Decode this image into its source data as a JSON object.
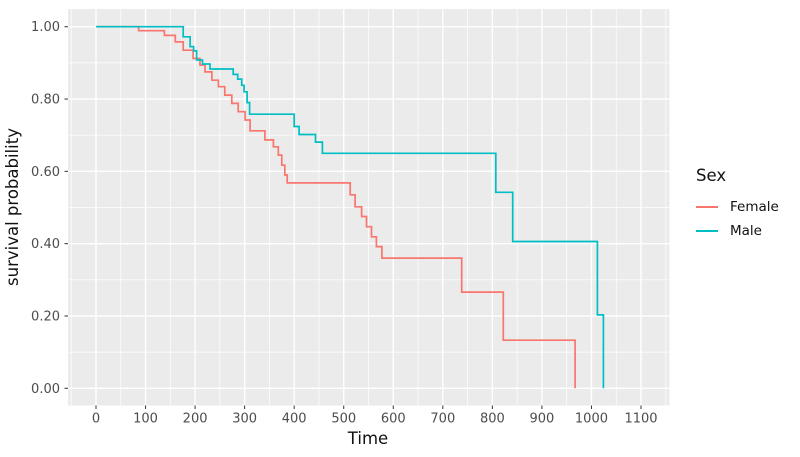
{
  "figure": {
    "background": "#ffffff",
    "panel_background": "#ebebeb",
    "grid_color": "#ffffff",
    "tick_mark_color": "#333333",
    "tick_label_color": "#4d4d4d",
    "axis_title_color": "#111111"
  },
  "chart_data": {
    "type": "line",
    "subtype": "kaplan-meier-step",
    "title": "",
    "xlabel": "Time",
    "ylabel": "survival probability",
    "grid": true,
    "legend_position": "right",
    "legend_title": "Sex",
    "xlim": [
      -56.5,
      1157.5
    ],
    "ylim": [
      -0.0476,
      1.049
    ],
    "x_ticks": {
      "values": [
        0,
        100,
        200,
        300,
        400,
        500,
        600,
        700,
        800,
        900,
        1000,
        1100
      ],
      "labels": [
        "0",
        "100",
        "200",
        "300",
        "400",
        "500",
        "600",
        "700",
        "800",
        "900",
        "1000",
        "1100"
      ]
    },
    "y_ticks": {
      "values": [
        0.0,
        0.2,
        0.4,
        0.6,
        0.8,
        1.0
      ],
      "labels": [
        "0.00",
        "0.20",
        "0.40",
        "0.60",
        "0.80",
        "1.00"
      ]
    },
    "x_minor": [
      -50,
      50,
      150,
      250,
      350,
      450,
      550,
      650,
      750,
      850,
      950,
      1050,
      1150
    ],
    "y_minor": [
      0.1,
      0.3,
      0.5,
      0.7,
      0.9
    ],
    "series": [
      {
        "name": "Female",
        "color": "#F8766D",
        "steps": [
          [
            0,
            1.0
          ],
          [
            86,
            0.989
          ],
          [
            138,
            0.976
          ],
          [
            160,
            0.958
          ],
          [
            176,
            0.935
          ],
          [
            196,
            0.912
          ],
          [
            210,
            0.894
          ],
          [
            220,
            0.875
          ],
          [
            234,
            0.852
          ],
          [
            247,
            0.834
          ],
          [
            260,
            0.811
          ],
          [
            274,
            0.788
          ],
          [
            287,
            0.765
          ],
          [
            301,
            0.742
          ],
          [
            311,
            0.712
          ],
          [
            341,
            0.687
          ],
          [
            358,
            0.668
          ],
          [
            368,
            0.645
          ],
          [
            375,
            0.617
          ],
          [
            381,
            0.59
          ],
          [
            386,
            0.568
          ],
          [
            513,
            0.535
          ],
          [
            523,
            0.502
          ],
          [
            536,
            0.475
          ],
          [
            546,
            0.447
          ],
          [
            556,
            0.419
          ],
          [
            566,
            0.392
          ],
          [
            577,
            0.36
          ],
          [
            738,
            0.266
          ],
          [
            822,
            0.133
          ],
          [
            967,
            0.0
          ]
        ]
      },
      {
        "name": "Male",
        "color": "#00BFC4",
        "steps": [
          [
            0,
            1.0
          ],
          [
            176,
            0.972
          ],
          [
            190,
            0.945
          ],
          [
            197,
            0.933
          ],
          [
            203,
            0.908
          ],
          [
            215,
            0.897
          ],
          [
            230,
            0.883
          ],
          [
            277,
            0.868
          ],
          [
            286,
            0.855
          ],
          [
            294,
            0.838
          ],
          [
            299,
            0.82
          ],
          [
            305,
            0.79
          ],
          [
            310,
            0.758
          ],
          [
            400,
            0.724
          ],
          [
            410,
            0.702
          ],
          [
            443,
            0.681
          ],
          [
            457,
            0.65
          ],
          [
            807,
            0.542
          ],
          [
            841,
            0.406
          ],
          [
            1012,
            0.203
          ],
          [
            1024,
            0.0
          ]
        ]
      }
    ]
  }
}
